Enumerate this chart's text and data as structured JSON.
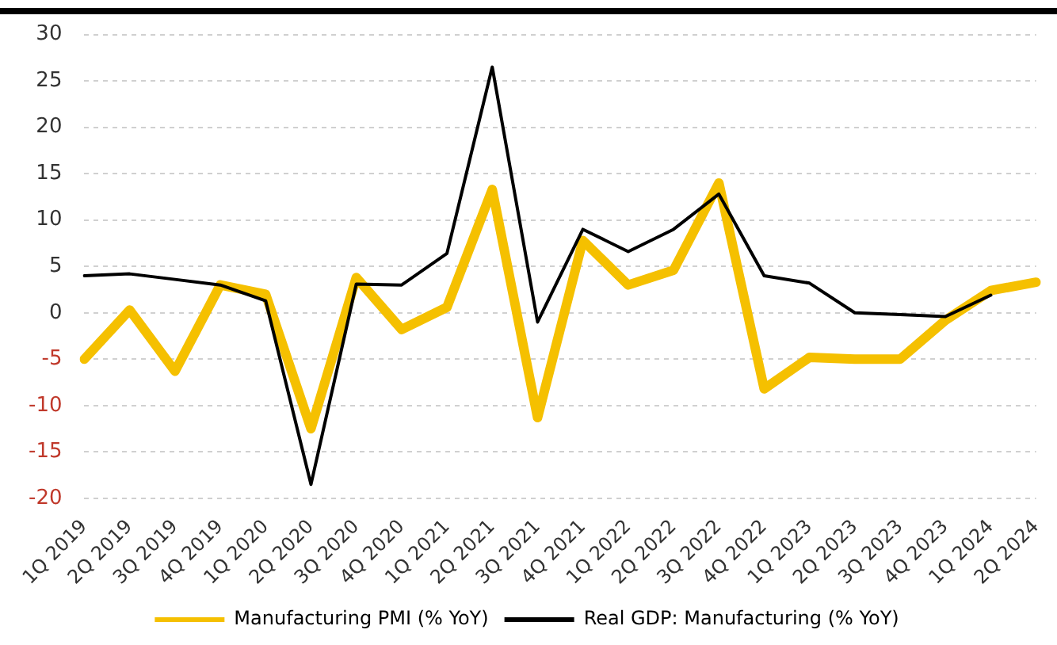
{
  "chart_data": {
    "type": "line",
    "categories": [
      "1Q 2019",
      "2Q 2019",
      "3Q 2019",
      "4Q 2019",
      "1Q 2020",
      "2Q 2020",
      "3Q 2020",
      "4Q 2020",
      "1Q 2021",
      "2Q 2021",
      "3Q 2021",
      "4Q 2021",
      "1Q 2022",
      "2Q 2022",
      "3Q 2022",
      "4Q 2022",
      "1Q 2023",
      "2Q 2023",
      "3Q 2023",
      "4Q 2023",
      "1Q 2024",
      "2Q 2024"
    ],
    "series": [
      {
        "name": "Manufacturing PMI (% YoY)",
        "color": "#f5c000",
        "values": [
          -5,
          0.3,
          -6.3,
          3,
          2,
          -12.5,
          3.8,
          -1.8,
          0.6,
          13.3,
          -11.3,
          7.8,
          3,
          4.6,
          14,
          -8.2,
          -4.8,
          -5,
          -5,
          -0.8,
          2.4,
          3.3
        ]
      },
      {
        "name": "Real GDP: Manufacturing (% YoY)",
        "color": "#000000",
        "values": [
          4,
          4.2,
          3.6,
          3,
          1.3,
          -18.5,
          3.1,
          3,
          6.4,
          26.5,
          -1,
          9,
          6.6,
          9,
          12.8,
          4,
          3.2,
          0,
          -0.2,
          -0.4,
          1.9,
          null
        ]
      }
    ],
    "ylim": [
      -20,
      30
    ],
    "yticks": [
      -20,
      -15,
      -10,
      -5,
      0,
      5,
      10,
      15,
      20,
      25,
      30
    ],
    "grid": "y",
    "legend": "bottom",
    "marker": "none",
    "line_style": "solid"
  }
}
